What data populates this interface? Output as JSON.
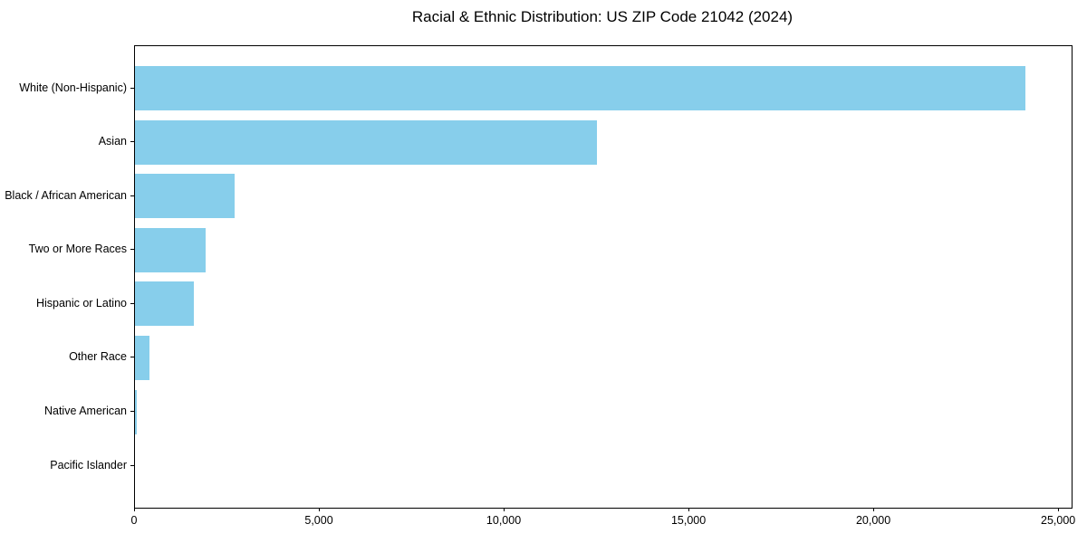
{
  "title": "Racial & Ethnic Distribution: US ZIP Code 21042 (2024)",
  "chart_data": {
    "type": "bar",
    "orientation": "horizontal",
    "title": "Racial & Ethnic Distribution: US ZIP Code 21042 (2024)",
    "xlabel": "",
    "ylabel": "",
    "categories": [
      "White (Non-Hispanic)",
      "Asian",
      "Black / African American",
      "Two or More Races",
      "Hispanic or Latino",
      "Other Race",
      "Native American",
      "Pacific Islander"
    ],
    "values": [
      24100,
      12500,
      2700,
      1900,
      1600,
      400,
      60,
      0
    ],
    "xlim": [
      0,
      25340
    ],
    "xticks": [
      0,
      5000,
      10000,
      15000,
      20000,
      25000
    ],
    "xtick_labels": [
      "0",
      "5,000",
      "10,000",
      "15,000",
      "20,000",
      "25,000"
    ],
    "bar_color": "#87CEEB",
    "background_color": "#ffffff",
    "spine_color": "#000000",
    "grid": false,
    "legend": false
  }
}
